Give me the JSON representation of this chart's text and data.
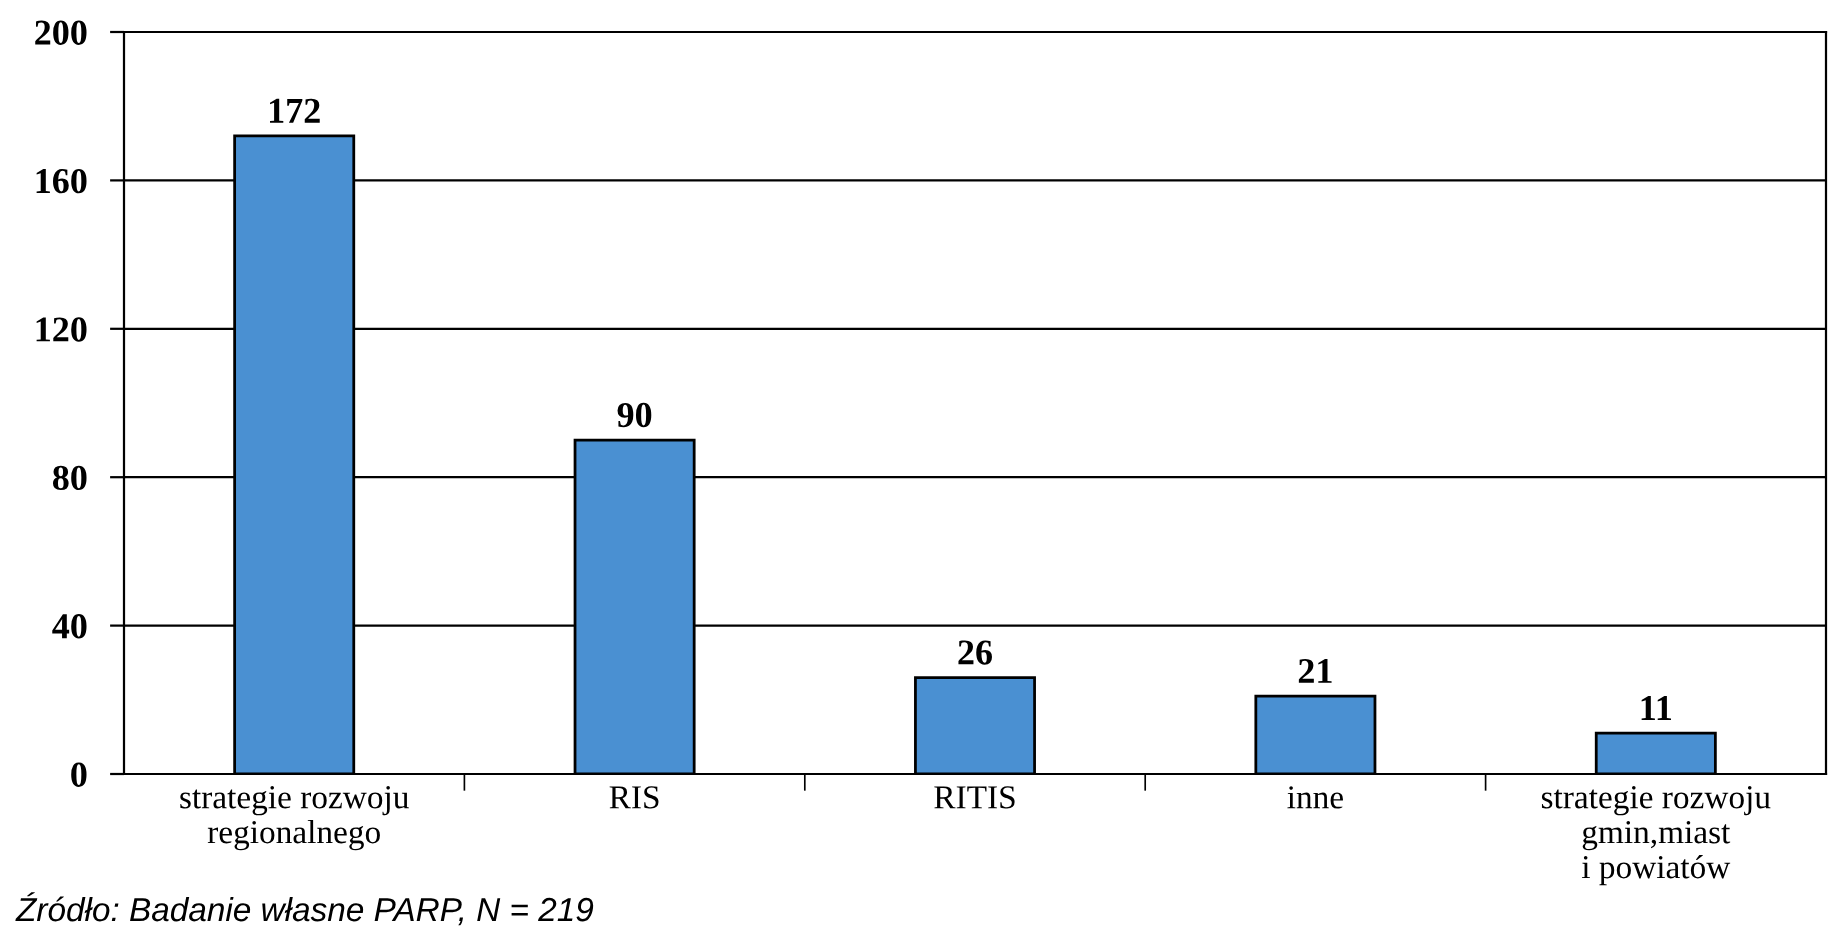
{
  "chart_data": {
    "type": "bar",
    "categories": [
      "strategie rozwoju\nregionalnego",
      "RIS",
      "RITIS",
      "inne",
      "strategie rozwoju\ngmin,miast\ni powiatów"
    ],
    "values": [
      172,
      90,
      26,
      21,
      11
    ],
    "color": "#4a90d2",
    "ylim": [
      0,
      200
    ],
    "yticks": [
      0,
      40,
      80,
      120,
      160,
      200
    ],
    "grid": "y",
    "data_labels": true,
    "annotations": [
      "Źródło: Badanie własne PARP, N = 219"
    ]
  }
}
